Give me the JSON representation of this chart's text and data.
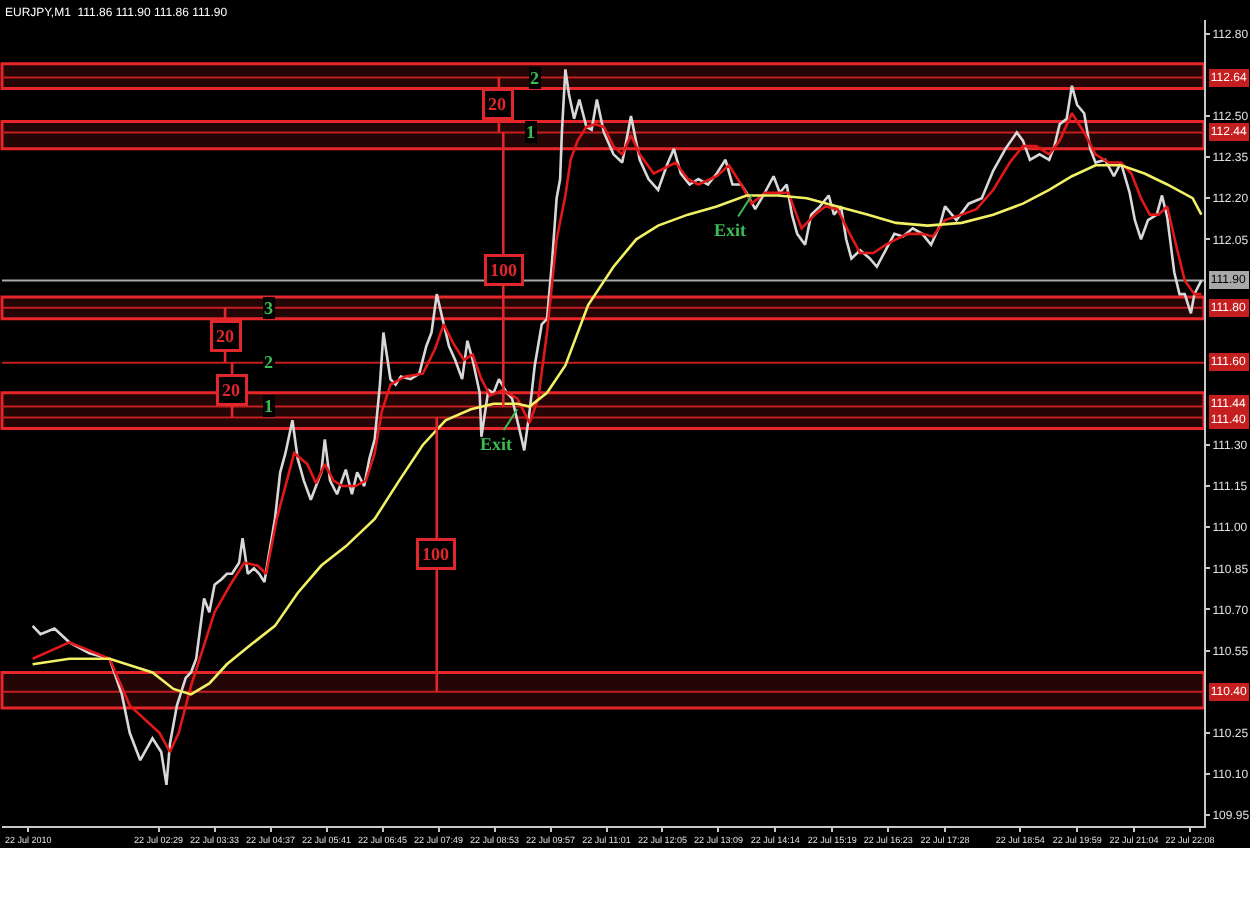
{
  "chart_data": {
    "type": "line",
    "title": "EURJPY,M1  111.86 111.90 111.86 111.90",
    "xlim": [
      "2010-07-21T23:30",
      "2010-07-22T22:24"
    ],
    "ylim": [
      109.91,
      112.85
    ],
    "xticks": [
      {
        "value": "2010-07-22T00:00",
        "label": "22 Jul 2010"
      },
      {
        "value": "2010-07-22T02:29",
        "label": "22 Jul 02:29"
      },
      {
        "value": "2010-07-22T03:33",
        "label": "22 Jul 03:33"
      },
      {
        "value": "2010-07-22T04:37",
        "label": "22 Jul 04:37"
      },
      {
        "value": "2010-07-22T05:41",
        "label": "22 Jul 05:41"
      },
      {
        "value": "2010-07-22T06:45",
        "label": "22 Jul 06:45"
      },
      {
        "value": "2010-07-22T07:49",
        "label": "22 Jul 07:49"
      },
      {
        "value": "2010-07-22T08:53",
        "label": "22 Jul 08:53"
      },
      {
        "value": "2010-07-22T09:57",
        "label": "22 Jul 09:57"
      },
      {
        "value": "2010-07-22T11:01",
        "label": "22 Jul 11:01"
      },
      {
        "value": "2010-07-22T12:05",
        "label": "22 Jul 12:05"
      },
      {
        "value": "2010-07-22T13:09",
        "label": "22 Jul 13:09"
      },
      {
        "value": "2010-07-22T14:14",
        "label": "22 Jul 14:14"
      },
      {
        "value": "2010-07-22T15:19",
        "label": "22 Jul 15:19"
      },
      {
        "value": "2010-07-22T16:23",
        "label": "22 Jul 16:23"
      },
      {
        "value": "2010-07-22T17:28",
        "label": "22 Jul 17:28"
      },
      {
        "value": "2010-07-22T18:54",
        "label": "22 Jul 18:54"
      },
      {
        "value": "2010-07-22T19:59",
        "label": "22 Jul 19:59"
      },
      {
        "value": "2010-07-22T21:04",
        "label": "22 Jul 21:04"
      },
      {
        "value": "2010-07-22T22:08",
        "label": "22 Jul 22:08"
      }
    ],
    "yticks": [
      {
        "value": 112.8,
        "label": "112.80"
      },
      {
        "value": 112.5,
        "label": "112.50"
      },
      {
        "value": 112.35,
        "label": "112.35"
      },
      {
        "value": 112.2,
        "label": "112.20"
      },
      {
        "value": 112.05,
        "label": "112.05"
      },
      {
        "value": 111.3,
        "label": "111.30"
      },
      {
        "value": 111.15,
        "label": "111.15"
      },
      {
        "value": 111,
        "label": "111.00"
      },
      {
        "value": 110.85,
        "label": "110.85"
      },
      {
        "value": 110.7,
        "label": "110.70"
      },
      {
        "value": 110.55,
        "label": "110.55"
      },
      {
        "value": 110.25,
        "label": "110.25"
      },
      {
        "value": 110.1,
        "label": "110.10"
      },
      {
        "value": 109.95,
        "label": "109.95"
      }
    ],
    "line_style": "solid",
    "series": [
      {
        "color": "#d8d8d8",
        "x": [
          "2010-07-22T00:05",
          "2010-07-22T00:14",
          "2010-07-22T00:30",
          "2010-07-22T00:47",
          "2010-07-22T01:10",
          "2010-07-22T01:33",
          "2010-07-22T01:47",
          "2010-07-22T01:56",
          "2010-07-22T02:08",
          "2010-07-22T02:22",
          "2010-07-22T02:32",
          "2010-07-22T02:36",
          "2010-07-22T02:38",
          "2010-07-22T02:42",
          "2010-07-22T02:50",
          "2010-07-22T03:00",
          "2010-07-22T03:06",
          "2010-07-22T03:12",
          "2010-07-22T03:21",
          "2010-07-22T03:27",
          "2010-07-22T03:33",
          "2010-07-22T03:41",
          "2010-07-22T03:47",
          "2010-07-22T03:53",
          "2010-07-22T04:01",
          "2010-07-22T04:05",
          "2010-07-22T04:11",
          "2010-07-22T04:18",
          "2010-07-22T04:24",
          "2010-07-22T04:30",
          "2010-07-22T04:34",
          "2010-07-22T04:42",
          "2010-07-22T04:48",
          "2010-07-22T04:54",
          "2010-07-22T05:02",
          "2010-07-22T05:08",
          "2010-07-22T05:15",
          "2010-07-22T05:23",
          "2010-07-22T05:29",
          "2010-07-22T05:35",
          "2010-07-22T05:39",
          "2010-07-22T05:45",
          "2010-07-22T05:53",
          "2010-07-22T06:03",
          "2010-07-22T06:10",
          "2010-07-22T06:16",
          "2010-07-22T06:24",
          "2010-07-22T06:30",
          "2010-07-22T06:36",
          "2010-07-22T06:42",
          "2010-07-22T06:46",
          "2010-07-22T06:54",
          "2010-07-22T07:00",
          "2010-07-22T07:06",
          "2010-07-22T07:17",
          "2010-07-22T07:27",
          "2010-07-22T07:35",
          "2010-07-22T07:41",
          "2010-07-22T07:47",
          "2010-07-22T07:55",
          "2010-07-22T08:01",
          "2010-07-22T08:08",
          "2010-07-22T08:16",
          "2010-07-22T08:22",
          "2010-07-22T08:28",
          "2010-07-22T08:36",
          "2010-07-22T08:38",
          "2010-07-22T08:46",
          "2010-07-22T08:52",
          "2010-07-22T08:58",
          "2010-07-22T09:07",
          "2010-07-22T09:13",
          "2010-07-22T09:19",
          "2010-07-22T09:27",
          "2010-07-22T09:33",
          "2010-07-22T09:39",
          "2010-07-22T09:47",
          "2010-07-22T09:53",
          "2010-07-22T09:59",
          "2010-07-22T10:04",
          "2010-07-22T10:08",
          "2010-07-22T10:10",
          "2010-07-22T10:14",
          "2010-07-22T10:18",
          "2010-07-22T10:24",
          "2010-07-22T10:30",
          "2010-07-22T10:38",
          "2010-07-22T10:44",
          "2010-07-22T10:50",
          "2010-07-22T10:58",
          "2010-07-22T11:09",
          "2010-07-22T11:19",
          "2010-07-22T11:29",
          "2010-07-22T11:39",
          "2010-07-22T11:49",
          "2010-07-22T12:00",
          "2010-07-22T12:10",
          "2010-07-22T12:18",
          "2010-07-22T12:26",
          "2010-07-22T12:36",
          "2010-07-22T12:46",
          "2010-07-22T12:57",
          "2010-07-22T13:07",
          "2010-07-22T13:17",
          "2010-07-22T13:25",
          "2010-07-22T13:35",
          "2010-07-22T13:41",
          "2010-07-22T13:51",
          "2010-07-22T14:02",
          "2010-07-22T14:12",
          "2010-07-22T14:19",
          "2010-07-22T14:27",
          "2010-07-22T14:33",
          "2010-07-22T14:39",
          "2010-07-22T14:48",
          "2010-07-22T14:55",
          "2010-07-22T15:05",
          "2010-07-22T15:15",
          "2010-07-22T15:21",
          "2010-07-22T15:29",
          "2010-07-22T15:35",
          "2010-07-22T15:41",
          "2010-07-22T15:51",
          "2010-07-22T16:02",
          "2010-07-22T16:10",
          "2010-07-22T16:20",
          "2010-07-22T16:30",
          "2010-07-22T16:40",
          "2010-07-22T16:51",
          "2010-07-22T17:02",
          "2010-07-22T17:12",
          "2010-07-22T17:22",
          "2010-07-22T17:28",
          "2010-07-22T17:41",
          "2010-07-22T17:55",
          "2010-07-22T18:10",
          "2010-07-22T18:23",
          "2010-07-22T18:37",
          "2010-07-22T18:50",
          "2010-07-22T18:57",
          "2010-07-22T19:05",
          "2010-07-22T19:16",
          "2010-07-22T19:27",
          "2010-07-22T19:33",
          "2010-07-22T19:39",
          "2010-07-22T19:47",
          "2010-07-22T19:53",
          "2010-07-22T19:59",
          "2010-07-22T20:07",
          "2010-07-22T20:14",
          "2010-07-22T20:20",
          "2010-07-22T20:31",
          "2010-07-22T20:41",
          "2010-07-22T20:49",
          "2010-07-22T20:59",
          "2010-07-22T21:05",
          "2010-07-22T21:12",
          "2010-07-22T21:20",
          "2010-07-22T21:30",
          "2010-07-22T21:36",
          "2010-07-22T21:42",
          "2010-07-22T21:50",
          "2010-07-22T21:56",
          "2010-07-22T22:02",
          "2010-07-22T22:09",
          "2010-07-22T22:13",
          "2010-07-22T22:21"
        ],
        "values": [
          110.64,
          110.61,
          110.63,
          110.58,
          110.54,
          110.52,
          110.39,
          110.25,
          110.15,
          110.23,
          110.18,
          110.1,
          110.06,
          110.21,
          110.35,
          110.45,
          110.47,
          110.52,
          110.74,
          110.69,
          110.79,
          110.81,
          110.83,
          110.83,
          110.87,
          110.96,
          110.83,
          110.85,
          110.83,
          110.8,
          110.88,
          111.03,
          111.2,
          111.27,
          111.39,
          111.25,
          111.17,
          111.1,
          111.15,
          111.2,
          111.32,
          111.17,
          111.12,
          111.21,
          111.12,
          111.2,
          111.15,
          111.25,
          111.32,
          111.52,
          111.71,
          111.54,
          111.52,
          111.55,
          111.54,
          111.56,
          111.66,
          111.71,
          111.85,
          111.74,
          111.66,
          111.61,
          111.54,
          111.68,
          111.61,
          111.49,
          111.33,
          111.5,
          111.49,
          111.54,
          111.49,
          111.47,
          111.39,
          111.28,
          111.42,
          111.59,
          111.74,
          111.76,
          111.98,
          112.2,
          112.27,
          112.44,
          112.67,
          112.58,
          112.49,
          112.56,
          112.46,
          112.45,
          112.56,
          112.44,
          112.36,
          112.33,
          112.5,
          112.34,
          112.27,
          112.23,
          112.32,
          112.38,
          112.29,
          112.25,
          112.27,
          112.25,
          112.29,
          112.34,
          112.25,
          112.25,
          112.22,
          112.16,
          112.22,
          112.28,
          112.22,
          112.25,
          112.14,
          112.07,
          112.03,
          112.14,
          112.17,
          112.21,
          112.14,
          112.17,
          112.05,
          111.98,
          112.01,
          111.98,
          111.95,
          112.01,
          112.07,
          112.06,
          112.09,
          112.07,
          112.03,
          112.1,
          112.17,
          112.12,
          112.18,
          112.2,
          112.3,
          112.38,
          112.44,
          112.41,
          112.34,
          112.36,
          112.34,
          112.39,
          112.47,
          112.49,
          112.61,
          112.54,
          112.51,
          112.38,
          112.33,
          112.34,
          112.28,
          112.33,
          112.22,
          112.12,
          112.05,
          112.12,
          112.14,
          112.21,
          112.13,
          111.93,
          111.85,
          111.85,
          111.78,
          111.85,
          111.9
        ]
      },
      {
        "color": "#e01818",
        "x": [
          "2010-07-22T00:05",
          "2010-07-22T00:47",
          "2010-07-22T01:33",
          "2010-07-22T01:56",
          "2010-07-22T02:30",
          "2010-07-22T02:42",
          "2010-07-22T02:52",
          "2010-07-22T03:06",
          "2010-07-22T03:21",
          "2010-07-22T03:33",
          "2010-07-22T03:51",
          "2010-07-22T04:07",
          "2010-07-22T04:22",
          "2010-07-22T04:32",
          "2010-07-22T04:44",
          "2010-07-22T04:54",
          "2010-07-22T05:04",
          "2010-07-22T05:19",
          "2010-07-22T05:29",
          "2010-07-22T05:39",
          "2010-07-22T05:49",
          "2010-07-22T05:59",
          "2010-07-22T06:14",
          "2010-07-22T06:26",
          "2010-07-22T06:36",
          "2010-07-22T06:44",
          "2010-07-22T06:54",
          "2010-07-22T07:11",
          "2010-07-22T07:31",
          "2010-07-22T07:45",
          "2010-07-22T07:55",
          "2010-07-22T08:06",
          "2010-07-22T08:18",
          "2010-07-22T08:28",
          "2010-07-22T08:38",
          "2010-07-22T08:48",
          "2010-07-22T09:02",
          "2010-07-22T09:19",
          "2010-07-22T09:33",
          "2010-07-22T09:43",
          "2010-07-22T09:53",
          "2010-07-22T10:04",
          "2010-07-22T10:14",
          "2010-07-22T10:20",
          "2010-07-22T10:28",
          "2010-07-22T10:38",
          "2010-07-22T10:48",
          "2010-07-22T10:58",
          "2010-07-22T11:09",
          "2010-07-22T11:19",
          "2010-07-22T11:29",
          "2010-07-22T11:39",
          "2010-07-22T11:55",
          "2010-07-22T12:20",
          "2010-07-22T12:34",
          "2010-07-22T12:46",
          "2010-07-22T13:07",
          "2010-07-22T13:21",
          "2010-07-22T13:35",
          "2010-07-22T13:47",
          "2010-07-22T14:02",
          "2010-07-22T14:17",
          "2010-07-22T14:29",
          "2010-07-22T14:44",
          "2010-07-22T14:59",
          "2010-07-22T15:11",
          "2010-07-22T15:25",
          "2010-07-22T15:39",
          "2010-07-22T15:51",
          "2010-07-22T16:06",
          "2010-07-22T16:20",
          "2010-07-22T16:32",
          "2010-07-22T16:46",
          "2010-07-22T17:02",
          "2010-07-22T17:14",
          "2010-07-22T17:28",
          "2010-07-22T17:47",
          "2010-07-22T18:04",
          "2010-07-22T18:23",
          "2010-07-22T18:42",
          "2010-07-22T18:57",
          "2010-07-22T19:12",
          "2010-07-22T19:27",
          "2010-07-22T19:39",
          "2010-07-22T19:53",
          "2010-07-22T20:07",
          "2010-07-22T20:20",
          "2010-07-22T20:35",
          "2010-07-22T20:49",
          "2010-07-22T21:01",
          "2010-07-22T21:12",
          "2010-07-22T21:22",
          "2010-07-22T21:32",
          "2010-07-22T21:42",
          "2010-07-22T21:52",
          "2010-07-22T22:02",
          "2010-07-22T22:13",
          "2010-07-22T22:21"
        ],
        "values": [
          110.52,
          110.58,
          110.52,
          110.35,
          110.25,
          110.18,
          110.25,
          110.42,
          110.57,
          110.69,
          110.79,
          110.87,
          110.86,
          110.83,
          111.03,
          111.15,
          111.27,
          111.23,
          111.16,
          111.23,
          111.17,
          111.15,
          111.15,
          111.17,
          111.27,
          111.42,
          111.52,
          111.55,
          111.56,
          111.65,
          111.74,
          111.67,
          111.61,
          111.63,
          111.54,
          111.48,
          111.5,
          111.47,
          111.38,
          111.47,
          111.71,
          112.05,
          112.21,
          112.34,
          112.41,
          112.46,
          112.47,
          112.46,
          112.39,
          112.36,
          112.43,
          112.36,
          112.29,
          112.33,
          112.27,
          112.25,
          112.28,
          112.32,
          112.25,
          112.18,
          112.22,
          112.22,
          112.22,
          112.09,
          112.14,
          112.17,
          112.16,
          112.07,
          112.0,
          112.0,
          112.03,
          112.05,
          112.07,
          112.07,
          112.06,
          112.12,
          112.14,
          112.16,
          112.23,
          112.33,
          112.39,
          112.39,
          112.36,
          112.41,
          112.51,
          112.44,
          112.36,
          112.33,
          112.33,
          112.29,
          112.2,
          112.14,
          112.14,
          112.17,
          112.03,
          111.9,
          111.85,
          111.85
        ]
      },
      {
        "color": "#f2f064",
        "x": [
          "2010-07-22T00:05",
          "2010-07-22T00:47",
          "2010-07-22T01:33",
          "2010-07-22T02:22",
          "2010-07-22T02:46",
          "2010-07-22T03:06",
          "2010-07-22T03:27",
          "2010-07-22T03:47",
          "2010-07-22T04:14",
          "2010-07-22T04:42",
          "2010-07-22T05:08",
          "2010-07-22T05:35",
          "2010-07-22T06:03",
          "2010-07-22T06:36",
          "2010-07-22T07:04",
          "2010-07-22T07:31",
          "2010-07-22T07:57",
          "2010-07-22T08:26",
          "2010-07-22T08:52",
          "2010-07-22T09:19",
          "2010-07-22T09:33",
          "2010-07-22T09:53",
          "2010-07-22T10:14",
          "2010-07-22T10:40",
          "2010-07-22T11:09",
          "2010-07-22T11:35",
          "2010-07-22T12:00",
          "2010-07-22T12:34",
          "2010-07-22T13:07",
          "2010-07-22T13:41",
          "2010-07-22T14:17",
          "2010-07-22T14:50",
          "2010-07-22T15:25",
          "2010-07-22T16:00",
          "2010-07-22T16:32",
          "2010-07-22T17:08",
          "2010-07-22T17:47",
          "2010-07-22T18:23",
          "2010-07-22T18:57",
          "2010-07-22T19:27",
          "2010-07-22T19:53",
          "2010-07-22T20:20",
          "2010-07-22T20:49",
          "2010-07-22T21:16",
          "2010-07-22T21:42",
          "2010-07-22T22:11",
          "2010-07-22T22:21"
        ],
        "values": [
          110.5,
          110.52,
          110.52,
          110.47,
          110.41,
          110.39,
          110.43,
          110.5,
          110.57,
          110.64,
          110.76,
          110.86,
          110.93,
          111.03,
          111.17,
          111.3,
          111.39,
          111.43,
          111.45,
          111.45,
          111.44,
          111.49,
          111.59,
          111.81,
          111.95,
          112.05,
          112.1,
          112.14,
          112.17,
          112.21,
          112.21,
          112.2,
          112.17,
          112.14,
          112.11,
          112.1,
          112.11,
          112.14,
          112.18,
          112.23,
          112.28,
          112.32,
          112.32,
          112.29,
          112.25,
          112.2,
          112.14
        ]
      },
      {
        "name": "20",
        "color": "#e0282c",
        "x": [
          "2010-07-22T08:58",
          "2010-07-22T08:58"
        ],
        "values": [
          112.64,
          112.44
        ]
      },
      {
        "name": "100",
        "color": "#e0282c",
        "x": [
          "2010-07-22T09:03",
          "2010-07-22T09:03"
        ],
        "values": [
          112.44,
          111.44
        ]
      },
      {
        "name": "20",
        "color": "#e0282c",
        "x": [
          "2010-07-22T03:45",
          "2010-07-22T03:45"
        ],
        "values": [
          111.8,
          111.6
        ]
      },
      {
        "name": "20",
        "color": "#e0282c",
        "x": [
          "2010-07-22T03:53",
          "2010-07-22T03:53"
        ],
        "values": [
          111.6,
          111.4
        ]
      },
      {
        "name": "100",
        "color": "#e0282c",
        "x": [
          "2010-07-22T07:47",
          "2010-07-22T07:47"
        ],
        "values": [
          111.4,
          110.4
        ]
      }
    ],
    "ref_lines": [
      {
        "axis": "y",
        "value": 112.64,
        "label": "112.64",
        "color": "#c41e1e"
      },
      {
        "axis": "y",
        "value": 112.44,
        "label": "112.44",
        "color": "#c41e1e"
      },
      {
        "axis": "y",
        "value": 111.9,
        "label": "111.90",
        "color": "#a8a8a8"
      },
      {
        "axis": "y",
        "value": 111.8,
        "label": "111.80",
        "color": "#c41e1e"
      },
      {
        "axis": "y",
        "value": 111.6,
        "label": "111.60",
        "color": "#c41e1e"
      },
      {
        "axis": "y",
        "value": 111.44,
        "label": "111.44",
        "color": "#c41e1e"
      },
      {
        "axis": "y",
        "value": 111.4,
        "label": "111.40",
        "color": "#c41e1e"
      },
      {
        "axis": "y",
        "value": 110.4,
        "label": "110.40",
        "color": "#c41e1e"
      }
    ],
    "bands": [
      {
        "axis": "y",
        "from": 112.6,
        "to": 112.69,
        "color": "#e8262a"
      },
      {
        "axis": "y",
        "from": 112.38,
        "to": 112.48,
        "color": "#e8262a"
      },
      {
        "axis": "y",
        "from": 111.76,
        "to": 111.84,
        "color": "#e8262a"
      },
      {
        "axis": "y",
        "from": 111.36,
        "to": 111.49,
        "color": "#e8262a"
      },
      {
        "axis": "y",
        "from": 110.34,
        "to": 110.47,
        "color": "#e8262a"
      }
    ],
    "annotations": [
      {
        "text": "2",
        "x": "2010-07-22T09:40",
        "y": 112.64
      },
      {
        "text": "1",
        "x": "2010-07-22T09:35",
        "y": 112.44
      },
      {
        "text": "3",
        "x": "2010-07-22T04:36",
        "y": 111.8
      },
      {
        "text": "2",
        "x": "2010-07-22T04:36",
        "y": 111.6
      },
      {
        "text": "1",
        "x": "2010-07-22T04:36",
        "y": 111.44
      },
      {
        "text": "Exit",
        "x": "2010-07-22T09:19",
        "y": 111.43
      },
      {
        "text": "Exit",
        "x": "2010-07-22T13:47",
        "y": 112.21
      }
    ]
  }
}
